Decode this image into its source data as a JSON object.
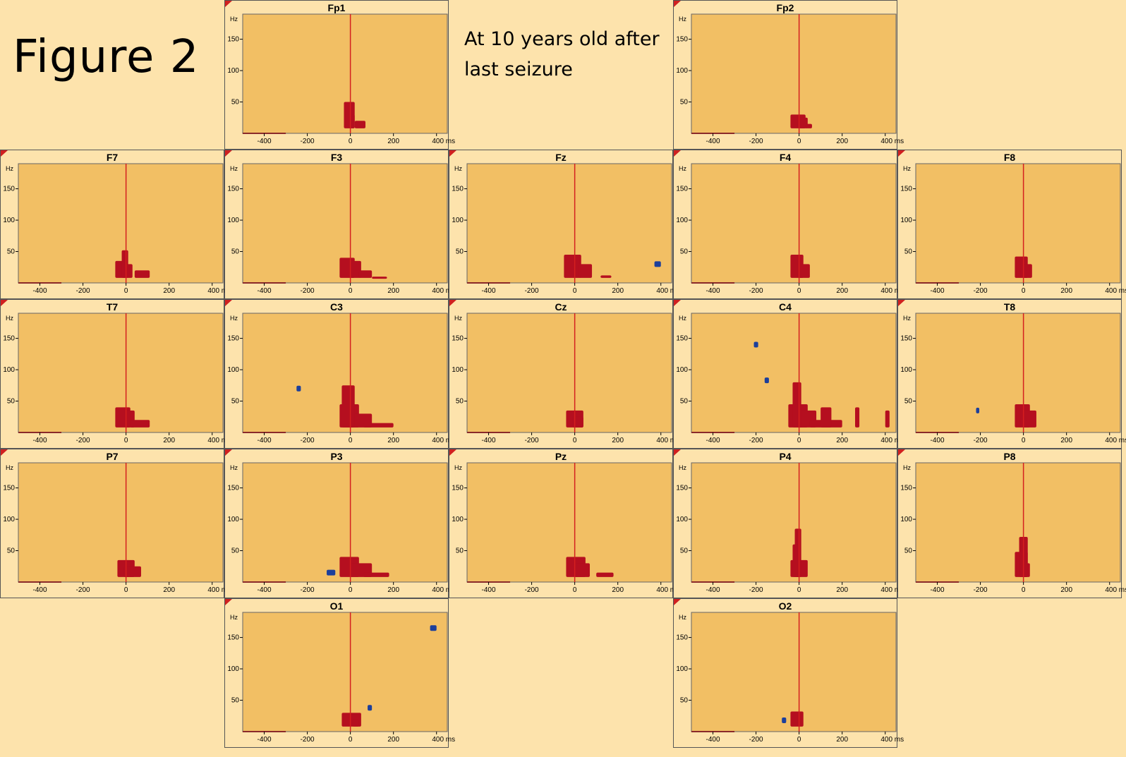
{
  "figure_title": "Figure 2",
  "note": {
    "line1": "At 10 years old after",
    "line2": "last seizure"
  },
  "colors": {
    "page_background": "#fde3ac",
    "plot_background": "#f2bf64",
    "increase": "#b50f1f",
    "decrease": "#1c3f9b",
    "stimulus_marker": "#d41f1f"
  },
  "chart_data": {
    "type": "heatmap",
    "description_of_type": "time-frequency significance map per EEG channel",
    "xlabel": "ms",
    "ylabel": "Hz",
    "xlim": [
      -500,
      450
    ],
    "ylim": [
      0,
      190
    ],
    "x_ticks": [
      -400,
      -200,
      0,
      200,
      400
    ],
    "x_tick_labels": [
      "-400",
      "-200",
      "0",
      "200",
      "400 ms"
    ],
    "y_ticks": [
      50,
      100,
      150
    ],
    "y_tick_labels": [
      "50",
      "100",
      "150"
    ],
    "y_unit_label": "Hz",
    "marker_x": 0,
    "channels": [
      {
        "name": "Fp1",
        "row": 0,
        "col": 1,
        "increase": [
          [
            -30,
            20,
            50
          ],
          [
            0,
            20,
            30
          ],
          [
            20,
            70,
            20
          ]
        ],
        "decrease": []
      },
      {
        "name": "Fp2",
        "row": 0,
        "col": 3,
        "increase": [
          [
            -40,
            30,
            30
          ],
          [
            0,
            40,
            25
          ],
          [
            30,
            60,
            15
          ]
        ],
        "decrease": []
      },
      {
        "name": "F7",
        "row": 1,
        "col": 0,
        "increase": [
          [
            -50,
            0,
            35
          ],
          [
            -20,
            10,
            52
          ],
          [
            0,
            30,
            30
          ],
          [
            40,
            110,
            20
          ]
        ],
        "decrease": []
      },
      {
        "name": "F3",
        "row": 1,
        "col": 2,
        "increase": [
          [
            -50,
            20,
            40
          ],
          [
            0,
            50,
            35
          ],
          [
            40,
            100,
            20
          ],
          [
            100,
            170,
            10
          ]
        ],
        "decrease": []
      },
      {
        "name": "Fz",
        "row": 1,
        "col": 2.0,
        "increase": [
          [
            -50,
            30,
            45
          ],
          [
            20,
            80,
            30
          ],
          [
            120,
            170,
            12
          ]
        ],
        "decrease": [
          [
            370,
            400,
            30
          ]
        ]
      },
      {
        "name": "F4",
        "row": 1,
        "col": 3,
        "increase": [
          [
            -40,
            20,
            45
          ],
          [
            0,
            50,
            30
          ]
        ],
        "decrease": []
      },
      {
        "name": "F8",
        "row": 1,
        "col": 4,
        "increase": [
          [
            -40,
            20,
            42
          ],
          [
            0,
            40,
            30
          ]
        ],
        "decrease": []
      },
      {
        "name": "T7",
        "row": 2,
        "col": 0,
        "increase": [
          [
            -50,
            20,
            40
          ],
          [
            0,
            40,
            35
          ],
          [
            20,
            110,
            20
          ]
        ],
        "decrease": []
      },
      {
        "name": "C3",
        "row": 2,
        "col": 1,
        "increase": [
          [
            -50,
            40,
            45
          ],
          [
            0,
            100,
            30
          ],
          [
            60,
            200,
            15
          ],
          [
            -40,
            20,
            75
          ]
        ],
        "decrease": [
          [
            -250,
            -230,
            70
          ]
        ]
      },
      {
        "name": "Cz",
        "row": 2,
        "col": 2,
        "increase": [
          [
            -40,
            40,
            35
          ],
          [
            -10,
            40,
            25
          ]
        ],
        "decrease": []
      },
      {
        "name": "C4",
        "row": 2,
        "col": 3,
        "increase": [
          [
            -50,
            40,
            45
          ],
          [
            0,
            80,
            35
          ],
          [
            50,
            200,
            20
          ],
          [
            -30,
            10,
            80
          ],
          [
            100,
            150,
            40
          ],
          [
            260,
            280,
            40
          ],
          [
            400,
            420,
            35
          ]
        ],
        "decrease": [
          [
            -210,
            -190,
            140
          ],
          [
            -160,
            -140,
            83
          ]
        ]
      },
      {
        "name": "T8",
        "row": 2,
        "col": 4,
        "increase": [
          [
            -40,
            30,
            45
          ],
          [
            0,
            60,
            35
          ]
        ],
        "decrease": [
          [
            -220,
            -205,
            35
          ]
        ]
      },
      {
        "name": "P7",
        "row": 3,
        "col": 0,
        "increase": [
          [
            -40,
            40,
            35
          ],
          [
            -10,
            70,
            25
          ]
        ],
        "decrease": []
      },
      {
        "name": "P3",
        "row": 3,
        "col": 1,
        "increase": [
          [
            -50,
            40,
            40
          ],
          [
            0,
            100,
            30
          ],
          [
            60,
            180,
            15
          ]
        ],
        "decrease": [
          [
            -110,
            -70,
            15
          ]
        ]
      },
      {
        "name": "Pz",
        "row": 3,
        "col": 2,
        "increase": [
          [
            -40,
            50,
            40
          ],
          [
            0,
            70,
            30
          ],
          [
            100,
            180,
            15
          ]
        ],
        "decrease": []
      },
      {
        "name": "P4",
        "row": 3,
        "col": 3,
        "increase": [
          [
            -40,
            40,
            35
          ],
          [
            -20,
            10,
            85
          ],
          [
            -30,
            0,
            60
          ]
        ],
        "decrease": []
      },
      {
        "name": "P8",
        "row": 3,
        "col": 4,
        "increase": [
          [
            -40,
            20,
            48
          ],
          [
            0,
            30,
            30
          ],
          [
            -20,
            20,
            72
          ]
        ],
        "decrease": []
      },
      {
        "name": "O1",
        "row": 4,
        "col": 1,
        "increase": [
          [
            -40,
            50,
            30
          ],
          [
            10,
            40,
            20
          ]
        ],
        "decrease": [
          [
            80,
            100,
            38
          ],
          [
            370,
            400,
            165
          ]
        ]
      },
      {
        "name": "O2",
        "row": 4,
        "col": 3,
        "increase": [
          [
            -40,
            20,
            32
          ]
        ],
        "decrease": [
          [
            -80,
            -60,
            18
          ]
        ]
      }
    ]
  }
}
